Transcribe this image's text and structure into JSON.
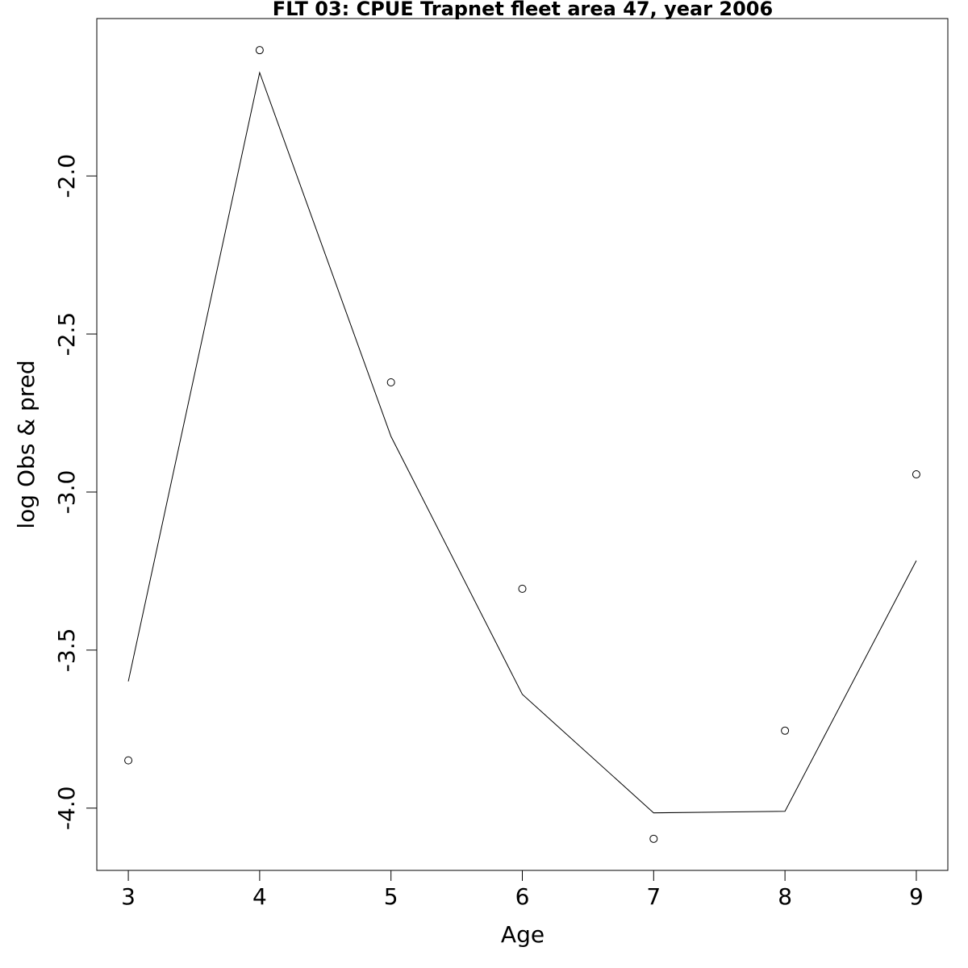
{
  "chart_data": {
    "type": "line",
    "title": "FLT 03: CPUE Trapnet fleet area 47, year 2006",
    "x_label": "Age",
    "y_label": "log Obs & pred",
    "x": [
      3,
      4,
      5,
      6,
      7,
      8,
      9
    ],
    "series": [
      {
        "mark": "point",
        "color": "#000000",
        "values": [
          -3.849,
          -1.602,
          -2.653,
          -3.306,
          -4.097,
          -3.755,
          -2.944
        ]
      },
      {
        "mark": "line",
        "color": "#000000",
        "values": [
          -3.599,
          -1.673,
          -2.824,
          -3.64,
          -4.015,
          -4.01,
          -3.217
        ]
      }
    ],
    "xlim": [
      2.76,
      9.24
    ],
    "ylim": [
      -4.197,
      -1.502
    ],
    "xticks": [
      3,
      4,
      5,
      6,
      7,
      8,
      9
    ],
    "yticks": [
      {
        "value": -4,
        "label": "-4.0"
      },
      {
        "value": -3.5,
        "label": "-3.5"
      },
      {
        "value": -3,
        "label": "-3.0"
      },
      {
        "value": -2.5,
        "label": "-2.5"
      },
      {
        "value": -2,
        "label": "-2.0"
      }
    ],
    "grid": false
  }
}
